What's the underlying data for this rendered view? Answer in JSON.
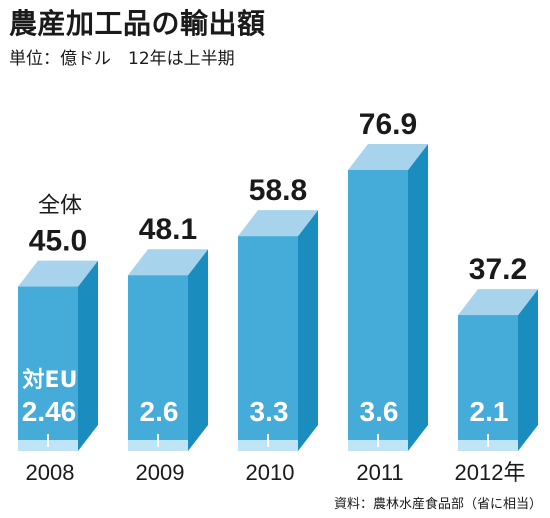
{
  "title": "農産加工品の輸出額",
  "subtitle": "単位：億ドル　12年は上半期",
  "source": "資料：農林水産食品部（省に相当）",
  "colors": {
    "front": "#45ABD9",
    "side": "#1A8DBE",
    "top": "#A7D4EC",
    "base": "#BFE4F6"
  },
  "chart_data": {
    "type": "bar",
    "categories": [
      "2008",
      "2009",
      "2010",
      "2011",
      "2012年"
    ],
    "series": [
      {
        "name": "全体",
        "values": [
          45.0,
          48.1,
          58.8,
          76.9,
          37.2
        ]
      },
      {
        "name": "対EU",
        "values": [
          2.46,
          2.6,
          3.3,
          3.6,
          2.1
        ]
      }
    ],
    "total_labels": [
      "45.0",
      "48.1",
      "58.8",
      "76.9",
      "37.2"
    ],
    "eu_labels": [
      "2.46",
      "2.6",
      "3.3",
      "3.6",
      "2.1"
    ],
    "annotations": {
      "total": "全体",
      "eu": "対EU"
    },
    "title": "農産加工品の輸出額",
    "ylabel": "",
    "ylim": [
      0,
      80
    ],
    "grid": false,
    "legend": "none"
  }
}
